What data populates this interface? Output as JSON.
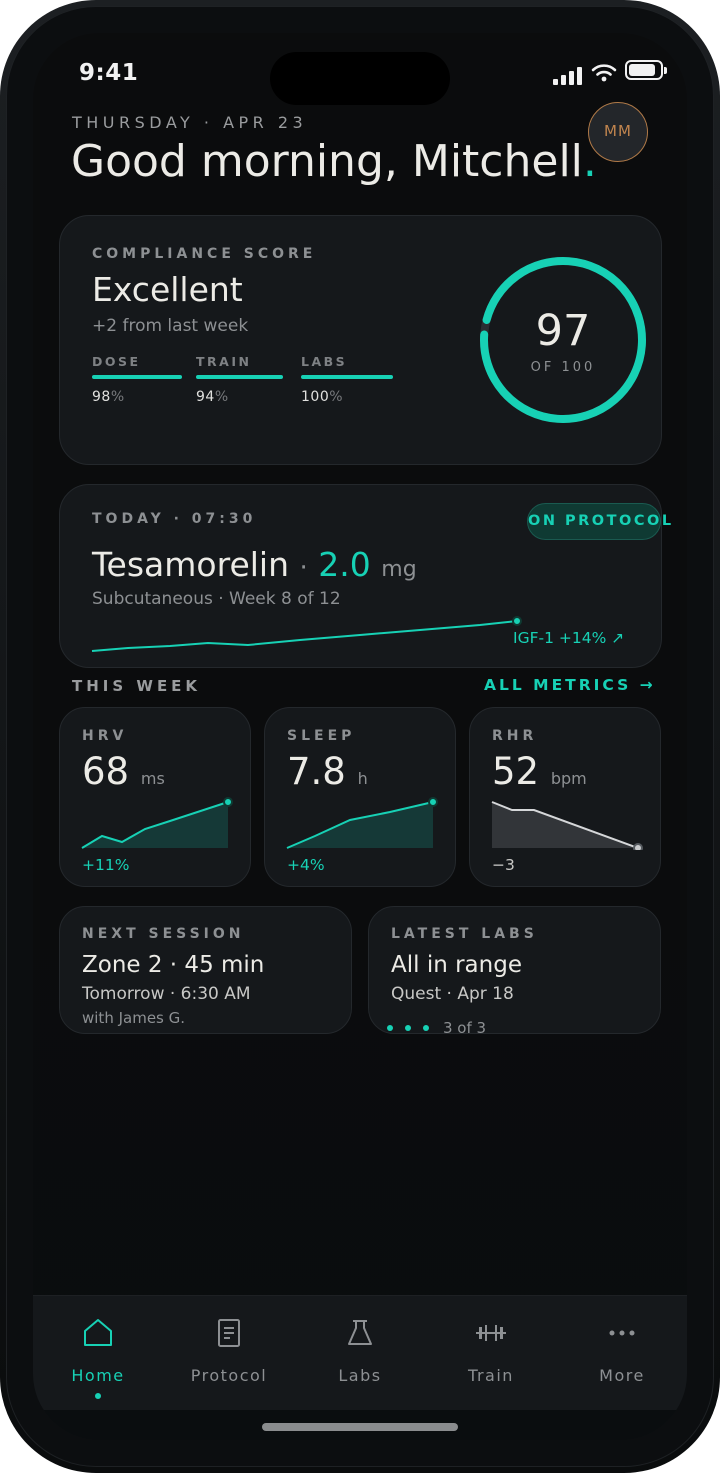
{
  "status_bar": {
    "time": "9:41"
  },
  "header": {
    "date": "THURSDAY · APR 23",
    "greeting": "Good morning, Mitchell",
    "greeting_dot": ".",
    "avatar_initials": "MM"
  },
  "compliance": {
    "label": "COMPLIANCE SCORE",
    "rating": "Excellent",
    "delta": "+2 from last week",
    "score": "97",
    "out_of": "OF 100",
    "score_fraction": 0.97,
    "metrics": [
      {
        "label": "DOSE",
        "value": "98",
        "unit": "%"
      },
      {
        "label": "TRAIN",
        "value": "94",
        "unit": "%"
      },
      {
        "label": "LABS",
        "value": "100",
        "unit": "%"
      }
    ]
  },
  "dose": {
    "label": "TODAY · 07:30",
    "status_badge": "ON PROTOCOL",
    "drug": "Tesamorelin",
    "separator": "·",
    "amount": "2.0",
    "unit": "mg",
    "route": "Subcutaneous · Week 8 of 12",
    "trend_label": "IGF-1 +14% ↗"
  },
  "this_week": {
    "label": "THIS WEEK",
    "link": "ALL METRICS →",
    "cards": [
      {
        "label": "HRV",
        "value": "68",
        "unit": "ms",
        "change": "+11%"
      },
      {
        "label": "SLEEP",
        "value": "7.8",
        "unit": "h",
        "change": "+4%"
      },
      {
        "label": "RHR",
        "value": "52",
        "unit": "bpm",
        "change": "−3"
      }
    ]
  },
  "next_session": {
    "label": "NEXT SESSION",
    "title": "Zone 2 · 45 min",
    "time": "Tomorrow · 6:30 AM",
    "coach": "with James G."
  },
  "latest_labs": {
    "label": "LATEST LABS",
    "title": "All in range",
    "source": "Quest · Apr 18",
    "count": "3 of 3"
  },
  "tabs": [
    {
      "label": "Home",
      "icon": "home-icon",
      "active": true
    },
    {
      "label": "Protocol",
      "icon": "document-icon",
      "active": false
    },
    {
      "label": "Labs",
      "icon": "flask-icon",
      "active": false
    },
    {
      "label": "Train",
      "icon": "dumbbell-icon",
      "active": false
    },
    {
      "label": "More",
      "icon": "more-icon",
      "active": false
    }
  ],
  "colors": {
    "accent": "#17d1b5",
    "background": "#0b0c0d",
    "card": "#15181b",
    "avatar_ring": "#b07a48"
  }
}
